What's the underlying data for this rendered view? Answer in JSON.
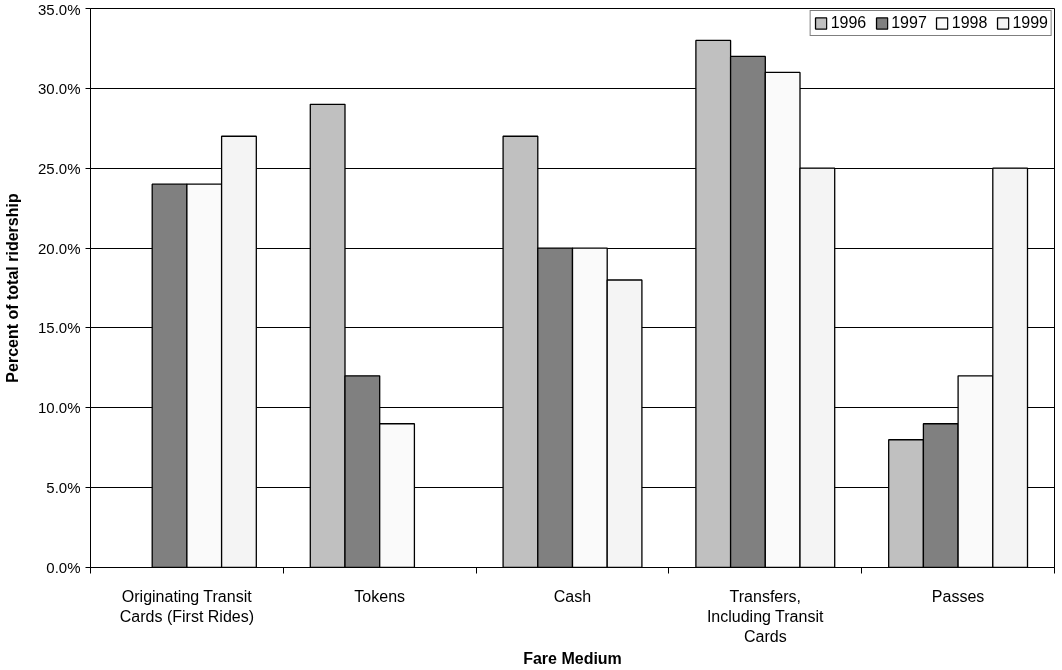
{
  "chart_data": {
    "type": "bar",
    "xlabel": "Fare Medium",
    "ylabel": "Percent of total ridership",
    "categories": [
      "Originating Transit Cards (First Rides)",
      "Tokens",
      "Cash",
      "Transfers, Including Transit Cards",
      "Passes"
    ],
    "series": [
      {
        "name": "1996",
        "color": "#c0c0c0",
        "values": [
          null,
          29,
          27,
          33,
          8
        ]
      },
      {
        "name": "1997",
        "color": "#808080",
        "values": [
          24,
          12,
          20,
          32,
          9
        ]
      },
      {
        "name": "1998",
        "color": "#fafafa",
        "values": [
          24,
          9,
          20,
          31,
          12
        ]
      },
      {
        "name": "1999",
        "color": "#f4f4f4",
        "values": [
          27,
          null,
          18,
          25,
          25
        ]
      }
    ],
    "ylim": [
      0,
      35
    ],
    "yticks": [
      {
        "value": 0,
        "label": "0.0%"
      },
      {
        "value": 5,
        "label": "5.0%"
      },
      {
        "value": 10,
        "label": "10.0%"
      },
      {
        "value": 15,
        "label": "15.0%"
      },
      {
        "value": 20,
        "label": "20.0%"
      },
      {
        "value": 25,
        "label": "25.0%"
      },
      {
        "value": 30,
        "label": "30.0%"
      },
      {
        "value": 35,
        "label": "35.0%"
      }
    ],
    "grid": "y",
    "legend": "top right"
  }
}
